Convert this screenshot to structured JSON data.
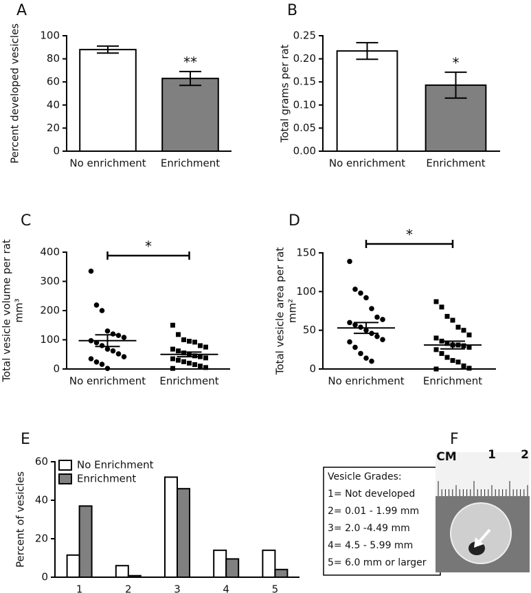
{
  "chart_data": [
    {
      "type": "bar",
      "panel_label": "A",
      "ylabel": [
        "Percent developed vesicles"
      ],
      "categories": [
        "No enrichment",
        "Enrichment"
      ],
      "values": [
        88,
        63
      ],
      "errors": [
        3,
        6
      ],
      "colors": [
        "#ffffff",
        "#808080"
      ],
      "ylim": [
        0,
        100
      ],
      "yticks": [
        0,
        20,
        40,
        60,
        80,
        100
      ],
      "significance": "**"
    },
    {
      "type": "bar",
      "panel_label": "B",
      "ylabel": [
        "Total grams per rat"
      ],
      "categories": [
        "No enrichment",
        "Enrichment"
      ],
      "values": [
        0.217,
        0.143
      ],
      "errors": [
        0.018,
        0.028
      ],
      "colors": [
        "#ffffff",
        "#808080"
      ],
      "ylim": [
        0,
        0.25
      ],
      "yticks": [
        {
          "value": 0,
          "label": "0.00"
        },
        0.05,
        {
          "value": 0.1,
          "label": "0.10"
        },
        0.15,
        {
          "value": 0.2,
          "label": "0.20"
        },
        0.25
      ],
      "significance": "*"
    },
    {
      "type": "dot",
      "panel_label": "C",
      "ylabel": [
        "Total vesicle volume per rat",
        "mm³"
      ],
      "categories": [
        "No enrichment",
        "Enrichment"
      ],
      "points": [
        [
          335,
          219,
          200,
          130,
          120,
          115,
          108,
          97,
          90,
          80,
          68,
          62,
          52,
          42,
          35,
          24,
          16,
          2
        ],
        [
          150,
          118,
          100,
          95,
          92,
          80,
          75,
          68,
          62,
          55,
          50,
          45,
          42,
          38,
          35,
          30,
          25,
          20,
          15,
          10,
          5,
          2
        ]
      ],
      "means": [
        97,
        50
      ],
      "sems": [
        20,
        8
      ],
      "markers": [
        "circle",
        "square"
      ],
      "ylim": [
        0,
        400
      ],
      "yticks": [
        0,
        100,
        200,
        300,
        400
      ],
      "significance": "*"
    },
    {
      "type": "dot",
      "panel_label": "D",
      "ylabel": [
        "Total vesicle area per rat",
        "mm²"
      ],
      "categories": [
        "No enrichment",
        "Enrichment"
      ],
      "points": [
        [
          139,
          103,
          98,
          92,
          78,
          67,
          64,
          60,
          57,
          54,
          50,
          46,
          42,
          38,
          35,
          28,
          20,
          14,
          10
        ],
        [
          87,
          80,
          68,
          63,
          54,
          50,
          44,
          40,
          36,
          33,
          31,
          31,
          30,
          28,
          25,
          20,
          15,
          11,
          9,
          4,
          1,
          0
        ]
      ],
      "means": [
        53,
        31
      ],
      "sems": [
        7,
        5
      ],
      "markers": [
        "circle",
        "square"
      ],
      "ylim": [
        0,
        150
      ],
      "yticks": [
        0,
        50,
        100,
        150
      ],
      "significance": "*"
    },
    {
      "type": "grouped",
      "panel_label": "E",
      "ylabel": [
        "Percent of vesicles"
      ],
      "categories": [
        "1",
        "2",
        "3",
        "4",
        "5"
      ],
      "series": [
        {
          "name": "No Enrichment",
          "color": "#ffffff",
          "values": [
            11.5,
            6,
            52,
            14,
            14
          ]
        },
        {
          "name": "Enrichment",
          "color": "#808080",
          "values": [
            37,
            0.8,
            46,
            9.5,
            4
          ]
        }
      ],
      "ylim": [
        0,
        60
      ],
      "yticks": [
        0,
        20,
        40,
        60
      ],
      "legend": "top-left",
      "annotation_box": [
        "Vesicle Grades:",
        "1= Not developed",
        "2= 0.01 - 1.99 mm",
        "3= 2.0 -4.49 mm",
        "4= 4.5 - 5.99 mm",
        "5= 6.0 mm or larger"
      ]
    },
    {
      "type": "image",
      "panel_label": "F",
      "ruler_labels": [
        "CM",
        "1",
        "2"
      ]
    }
  ]
}
